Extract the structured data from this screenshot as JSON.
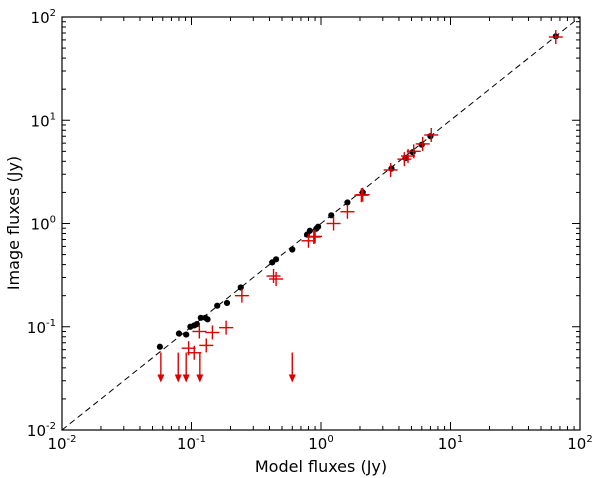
{
  "chart_data": {
    "type": "scatter",
    "title": "",
    "xlabel": "Model fluxes (Jy)",
    "ylabel": "Image fluxes (Jy)",
    "xscale": "log",
    "yscale": "log",
    "xlim": [
      0.01,
      100
    ],
    "ylim": [
      0.01,
      100
    ],
    "x_ticks": [
      {
        "base": "10",
        "exp": "-2"
      },
      {
        "base": "10",
        "exp": "-1"
      },
      {
        "base": "10",
        "exp": "0"
      },
      {
        "base": "10",
        "exp": "1"
      },
      {
        "base": "10",
        "exp": "2"
      }
    ],
    "y_ticks": [
      {
        "base": "10",
        "exp": "-2"
      },
      {
        "base": "10",
        "exp": "-1"
      },
      {
        "base": "10",
        "exp": "0"
      },
      {
        "base": "10",
        "exp": "1"
      },
      {
        "base": "10",
        "exp": "2"
      }
    ],
    "grid": false,
    "reference_line": {
      "style": "dashed",
      "color": "#000000",
      "relation": "y = x"
    },
    "series": [
      {
        "marker": "circle",
        "color": "#000000",
        "points": [
          [
            0.057,
            0.064
          ],
          [
            0.08,
            0.086
          ],
          [
            0.091,
            0.084
          ],
          [
            0.098,
            0.1
          ],
          [
            0.105,
            0.103
          ],
          [
            0.11,
            0.106
          ],
          [
            0.118,
            0.122
          ],
          [
            0.128,
            0.122
          ],
          [
            0.133,
            0.118
          ],
          [
            0.158,
            0.16
          ],
          [
            0.188,
            0.17
          ],
          [
            0.24,
            0.24
          ],
          [
            0.42,
            0.42
          ],
          [
            0.45,
            0.45
          ],
          [
            0.6,
            0.56
          ],
          [
            0.78,
            0.78
          ],
          [
            0.82,
            0.85
          ],
          [
            0.92,
            0.89
          ],
          [
            0.95,
            0.93
          ],
          [
            1.2,
            1.2
          ],
          [
            1.6,
            1.6
          ],
          [
            2.1,
            2.0
          ],
          [
            3.5,
            3.4
          ],
          [
            4.5,
            4.3
          ],
          [
            5.1,
            4.9
          ],
          [
            6.0,
            5.8
          ],
          [
            7.0,
            7.0
          ],
          [
            65.0,
            65.0
          ]
        ]
      },
      {
        "marker": "plus",
        "color": "#dd0000",
        "points": [
          [
            0.095,
            0.062
          ],
          [
            0.105,
            0.056
          ],
          [
            0.115,
            0.09
          ],
          [
            0.13,
            0.066
          ],
          [
            0.145,
            0.088
          ],
          [
            0.185,
            0.098
          ],
          [
            0.245,
            0.2
          ],
          [
            0.43,
            0.31
          ],
          [
            0.45,
            0.29
          ],
          [
            0.8,
            0.68
          ],
          [
            0.88,
            0.74
          ],
          [
            0.9,
            0.75
          ],
          [
            1.25,
            1.0
          ],
          [
            1.6,
            1.3
          ],
          [
            2.05,
            1.88
          ],
          [
            2.1,
            1.9
          ],
          [
            3.45,
            3.3
          ],
          [
            4.4,
            4.2
          ],
          [
            4.7,
            4.5
          ],
          [
            5.2,
            5.0
          ],
          [
            6.1,
            5.9
          ],
          [
            7.1,
            7.2
          ],
          [
            65.0,
            64.0
          ]
        ]
      },
      {
        "marker": "upper-limit-arrow",
        "color": "#dd0000",
        "points": [
          [
            0.058,
            0.045
          ],
          [
            0.079,
            0.045
          ],
          [
            0.091,
            0.045
          ],
          [
            0.116,
            0.045
          ],
          [
            0.6,
            0.045
          ]
        ]
      }
    ]
  }
}
